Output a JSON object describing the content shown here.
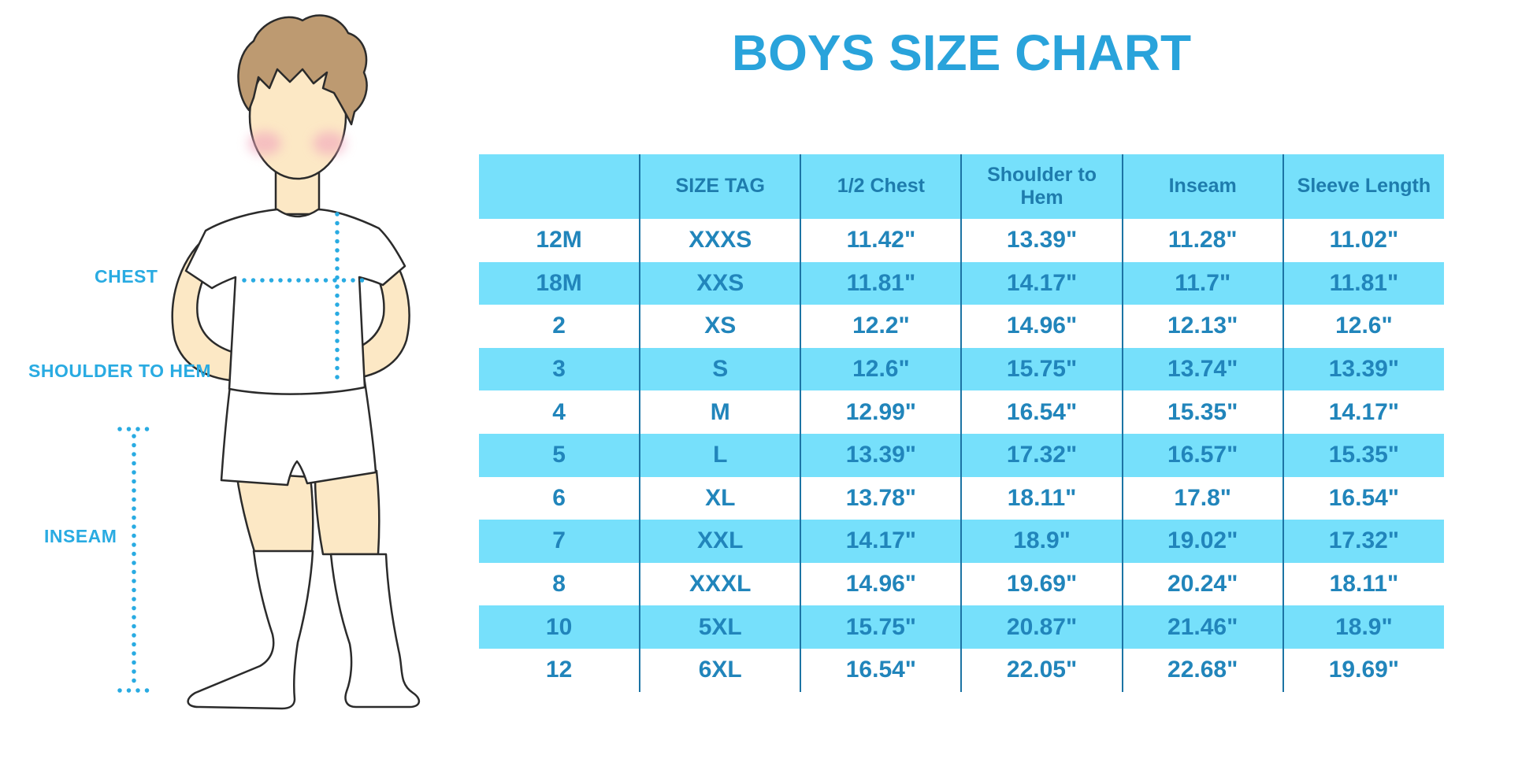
{
  "title": "BOYS SIZE CHART",
  "figure": {
    "labels": {
      "chest": "CHEST",
      "shoulder_to_hem": "SHOULDER TO HEM",
      "inseam": "INSEAM"
    }
  },
  "colors": {
    "title_blue": "#29A3DB",
    "label_blue": "#29ABE2",
    "dot_blue": "#29ABE2",
    "band_blue": "#76E0FB",
    "header_text": "#1E7CAD",
    "cell_text": "#2185BB",
    "divider": "#1C74A4",
    "skin": "#FCE8C5",
    "hair": "#BD9A71",
    "blush": "#F2A9BE",
    "outline": "#2B2B2B"
  },
  "chart_data": {
    "type": "table",
    "title": "BOYS SIZE CHART",
    "columns": [
      "",
      "SIZE TAG",
      "1/2 Chest",
      "Shoulder to Hem",
      "Inseam",
      "Sleeve Length"
    ],
    "rows": [
      [
        "12M",
        "XXXS",
        "11.42\"",
        "13.39\"",
        "11.28\"",
        "11.02\""
      ],
      [
        "18M",
        "XXS",
        "11.81\"",
        "14.17\"",
        "11.7\"",
        "11.81\""
      ],
      [
        "2",
        "XS",
        "12.2\"",
        "14.96\"",
        "12.13\"",
        "12.6\""
      ],
      [
        "3",
        "S",
        "12.6\"",
        "15.75\"",
        "13.74\"",
        "13.39\""
      ],
      [
        "4",
        "M",
        "12.99\"",
        "16.54\"",
        "15.35\"",
        "14.17\""
      ],
      [
        "5",
        "L",
        "13.39\"",
        "17.32\"",
        "16.57\"",
        "15.35\""
      ],
      [
        "6",
        "XL",
        "13.78\"",
        "18.11\"",
        "17.8\"",
        "16.54\""
      ],
      [
        "7",
        "XXL",
        "14.17\"",
        "18.9\"",
        "19.02\"",
        "17.32\""
      ],
      [
        "8",
        "XXXL",
        "14.96\"",
        "19.69\"",
        "20.24\"",
        "18.11\""
      ],
      [
        "10",
        "5XL",
        "15.75\"",
        "20.87\"",
        "21.46\"",
        "18.9\""
      ],
      [
        "12",
        "6XL",
        "16.54\"",
        "22.05\"",
        "22.68\"",
        "19.69\""
      ]
    ],
    "striped_row_indices": [
      1,
      3,
      5,
      7,
      9
    ]
  }
}
